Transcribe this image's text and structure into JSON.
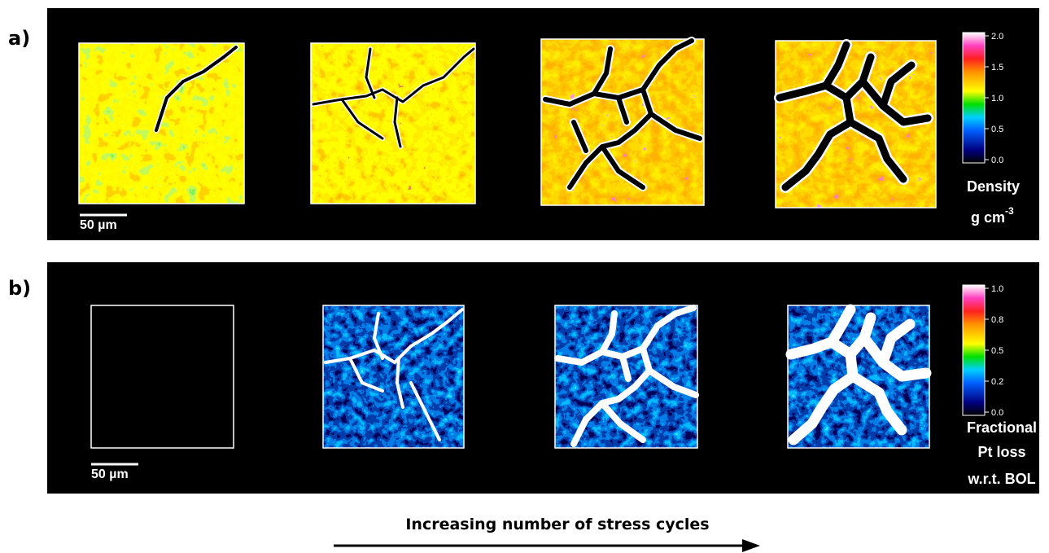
{
  "panels": [
    {
      "label": "a)",
      "scale_bar": "50 µm",
      "colorbar": {
        "ticks": [
          "2.0",
          "1.5",
          "1.0",
          "0.5",
          "0.0"
        ],
        "title": [
          "Density",
          "g cm"
        ],
        "superscript": "-3"
      }
    },
    {
      "label": "b)",
      "scale_bar": "50 µm",
      "colorbar": {
        "ticks": [
          "1.0",
          "0.8",
          "0.5",
          "0.2",
          "0.0"
        ],
        "title": [
          "Fractional",
          "Pt loss",
          "w.r.t. BOL"
        ]
      }
    }
  ],
  "caption": "Increasing number of stress cycles"
}
